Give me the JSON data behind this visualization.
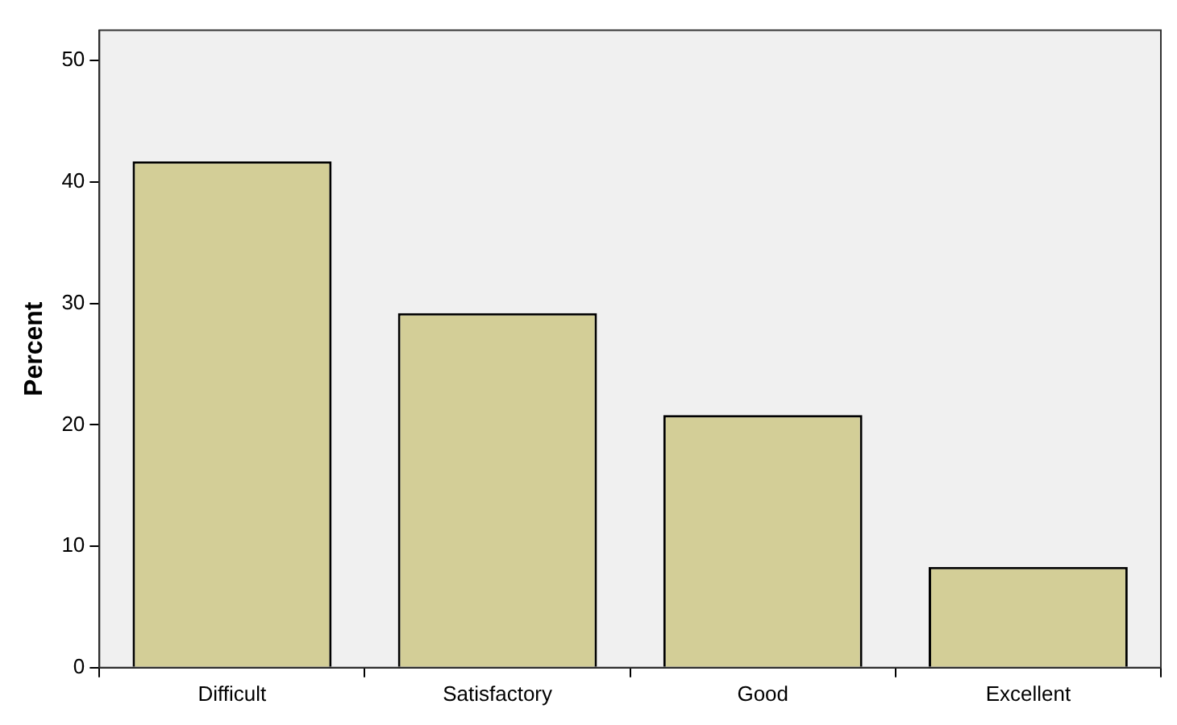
{
  "chart_data": {
    "type": "bar",
    "ylabel": "Percent",
    "categories": [
      "Difficult",
      "Satisfactory",
      "Good",
      "Excellent"
    ],
    "values": [
      41.7,
      29.2,
      20.8,
      8.3
    ],
    "color": "#d3ce97",
    "ylim": [
      0,
      52.5
    ],
    "yticks": [
      0,
      10,
      20,
      30,
      40,
      50
    ]
  }
}
